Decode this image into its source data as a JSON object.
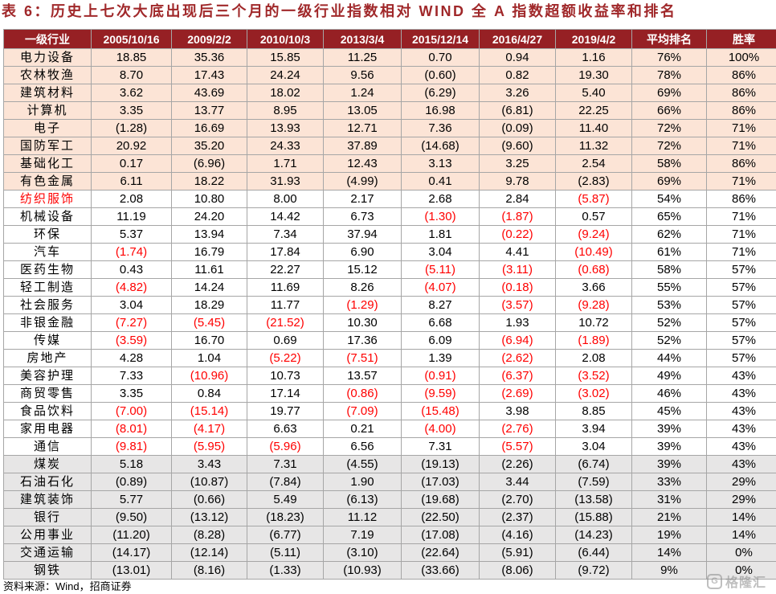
{
  "title": "表 6：历史上七次大底出现后三个月的一级行业指数相对 WIND 全 A 指数超额收益率和排名",
  "colors": {
    "title": "#A0282A",
    "header_bg": "#962024",
    "header_text": "#FFFFFF"
  },
  "table": {
    "headers": [
      "一级行业",
      "2005/10/16",
      "2009/2/2",
      "2010/10/3",
      "2013/3/4",
      "2015/12/14",
      "2016/4/27",
      "2019/4/2",
      "平均排名",
      "胜率"
    ],
    "bands": [
      {
        "bg": "#FCE4D6",
        "negative_color": "#000000",
        "rows": [
          {
            "industry": "电力设备",
            "values": [
              "18.85",
              "35.36",
              "15.85",
              "11.25",
              "0.70",
              "0.94",
              "1.16"
            ],
            "avg_rank": "76%",
            "win_rate": "100%"
          },
          {
            "industry": "农林牧渔",
            "values": [
              "8.70",
              "17.43",
              "24.24",
              "9.56",
              "(0.60)",
              "0.82",
              "19.30"
            ],
            "avg_rank": "78%",
            "win_rate": "86%"
          },
          {
            "industry": "建筑材料",
            "values": [
              "3.62",
              "43.69",
              "18.02",
              "1.24",
              "(6.29)",
              "3.26",
              "5.40"
            ],
            "avg_rank": "69%",
            "win_rate": "86%"
          },
          {
            "industry": "计算机",
            "values": [
              "3.35",
              "13.77",
              "8.95",
              "13.05",
              "16.98",
              "(6.81)",
              "22.25"
            ],
            "avg_rank": "66%",
            "win_rate": "86%"
          },
          {
            "industry": "电子",
            "values": [
              "(1.28)",
              "16.69",
              "13.93",
              "12.71",
              "7.36",
              "(0.09)",
              "11.40"
            ],
            "avg_rank": "72%",
            "win_rate": "71%"
          },
          {
            "industry": "国防军工",
            "values": [
              "20.92",
              "35.20",
              "24.33",
              "37.89",
              "(14.68)",
              "(9.60)",
              "11.32"
            ],
            "avg_rank": "72%",
            "win_rate": "71%"
          },
          {
            "industry": "基础化工",
            "values": [
              "0.17",
              "(6.96)",
              "1.71",
              "12.43",
              "3.13",
              "3.25",
              "2.54"
            ],
            "avg_rank": "58%",
            "win_rate": "86%"
          },
          {
            "industry": "有色金属",
            "values": [
              "6.11",
              "18.22",
              "31.93",
              "(4.99)",
              "0.41",
              "9.78",
              "(2.83)"
            ],
            "avg_rank": "69%",
            "win_rate": "71%"
          }
        ]
      },
      {
        "bg": "#FFFFFF",
        "negative_color": "#FF0000",
        "rows": [
          {
            "industry": "纺织服饰",
            "name_color": "#FF0000",
            "values": [
              "2.08",
              "10.80",
              "8.00",
              "2.17",
              "2.68",
              "2.84",
              "(5.87)"
            ],
            "avg_rank": "54%",
            "win_rate": "86%"
          },
          {
            "industry": "机械设备",
            "values": [
              "11.19",
              "24.20",
              "14.42",
              "6.73",
              "(1.30)",
              "(1.87)",
              "0.57"
            ],
            "avg_rank": "65%",
            "win_rate": "71%"
          },
          {
            "industry": "环保",
            "values": [
              "5.37",
              "13.94",
              "7.34",
              "37.94",
              "1.81",
              "(0.22)",
              "(9.24)"
            ],
            "avg_rank": "62%",
            "win_rate": "71%"
          },
          {
            "industry": "汽车",
            "values": [
              "(1.74)",
              "16.79",
              "17.84",
              "6.90",
              "3.04",
              "4.41",
              "(10.49)"
            ],
            "avg_rank": "61%",
            "win_rate": "71%"
          },
          {
            "industry": "医药生物",
            "values": [
              "0.43",
              "11.61",
              "22.27",
              "15.12",
              "(5.11)",
              "(3.11)",
              "(0.68)"
            ],
            "avg_rank": "58%",
            "win_rate": "57%"
          },
          {
            "industry": "轻工制造",
            "values": [
              "(4.82)",
              "14.24",
              "11.69",
              "8.26",
              "(4.07)",
              "(0.18)",
              "3.66"
            ],
            "avg_rank": "55%",
            "win_rate": "57%"
          },
          {
            "industry": "社会服务",
            "values": [
              "3.04",
              "18.29",
              "11.77",
              "(1.29)",
              "8.27",
              "(3.57)",
              "(9.28)"
            ],
            "avg_rank": "53%",
            "win_rate": "57%"
          },
          {
            "industry": "非银金融",
            "values": [
              "(7.27)",
              "(5.45)",
              "(21.52)",
              "10.30",
              "6.68",
              "1.93",
              "10.72"
            ],
            "avg_rank": "52%",
            "win_rate": "57%"
          },
          {
            "industry": "传媒",
            "values": [
              "(3.59)",
              "16.70",
              "0.69",
              "17.36",
              "6.09",
              "(6.94)",
              "(1.89)"
            ],
            "avg_rank": "52%",
            "win_rate": "57%"
          },
          {
            "industry": "房地产",
            "values": [
              "4.28",
              "1.04",
              "(5.22)",
              "(7.51)",
              "1.39",
              "(2.62)",
              "2.08"
            ],
            "avg_rank": "44%",
            "win_rate": "57%"
          },
          {
            "industry": "美容护理",
            "values": [
              "7.33",
              "(10.96)",
              "10.73",
              "13.57",
              "(0.91)",
              "(6.37)",
              "(3.52)"
            ],
            "avg_rank": "49%",
            "win_rate": "43%"
          },
          {
            "industry": "商贸零售",
            "values": [
              "3.35",
              "0.84",
              "17.14",
              "(0.86)",
              "(9.59)",
              "(2.69)",
              "(3.02)"
            ],
            "avg_rank": "46%",
            "win_rate": "43%"
          },
          {
            "industry": "食品饮料",
            "values": [
              "(7.00)",
              "(15.14)",
              "19.77",
              "(7.09)",
              "(15.48)",
              "3.98",
              "8.85"
            ],
            "avg_rank": "45%",
            "win_rate": "43%"
          },
          {
            "industry": "家用电器",
            "values": [
              "(8.01)",
              "(4.17)",
              "6.63",
              "0.21",
              "(4.00)",
              "(2.76)",
              "3.94"
            ],
            "avg_rank": "39%",
            "win_rate": "43%"
          },
          {
            "industry": "通信",
            "values": [
              "(9.81)",
              "(5.95)",
              "(5.96)",
              "6.56",
              "7.31",
              "(5.57)",
              "3.04"
            ],
            "avg_rank": "39%",
            "win_rate": "43%"
          }
        ]
      },
      {
        "bg": "#E7E6E6",
        "negative_color": "#000000",
        "rows": [
          {
            "industry": "煤炭",
            "values": [
              "5.18",
              "3.43",
              "7.31",
              "(4.55)",
              "(19.13)",
              "(2.26)",
              "(6.74)"
            ],
            "avg_rank": "39%",
            "win_rate": "43%"
          },
          {
            "industry": "石油石化",
            "values": [
              "(0.89)",
              "(10.87)",
              "(7.84)",
              "1.90",
              "(17.03)",
              "3.44",
              "(7.59)"
            ],
            "avg_rank": "33%",
            "win_rate": "29%"
          },
          {
            "industry": "建筑装饰",
            "values": [
              "5.77",
              "(0.66)",
              "5.49",
              "(6.13)",
              "(19.68)",
              "(2.70)",
              "(13.58)"
            ],
            "avg_rank": "31%",
            "win_rate": "29%"
          },
          {
            "industry": "银行",
            "values": [
              "(9.50)",
              "(13.12)",
              "(18.23)",
              "11.12",
              "(22.50)",
              "(2.37)",
              "(15.88)"
            ],
            "avg_rank": "21%",
            "win_rate": "14%"
          },
          {
            "industry": "公用事业",
            "values": [
              "(11.20)",
              "(8.28)",
              "(6.77)",
              "7.19",
              "(17.08)",
              "(4.16)",
              "(14.23)"
            ],
            "avg_rank": "19%",
            "win_rate": "14%"
          },
          {
            "industry": "交通运输",
            "values": [
              "(14.17)",
              "(12.14)",
              "(5.11)",
              "(3.10)",
              "(22.64)",
              "(5.91)",
              "(6.44)"
            ],
            "avg_rank": "14%",
            "win_rate": "0%"
          },
          {
            "industry": "钢铁",
            "values": [
              "(13.01)",
              "(8.16)",
              "(1.33)",
              "(10.93)",
              "(33.66)",
              "(8.06)",
              "(9.72)"
            ],
            "avg_rank": "9%",
            "win_rate": "0%"
          }
        ]
      }
    ]
  },
  "source": "资料来源：Wind，招商证券",
  "watermark": {
    "icon": "g-logo-icon",
    "icon_letter": "G",
    "text": "格隆汇"
  }
}
